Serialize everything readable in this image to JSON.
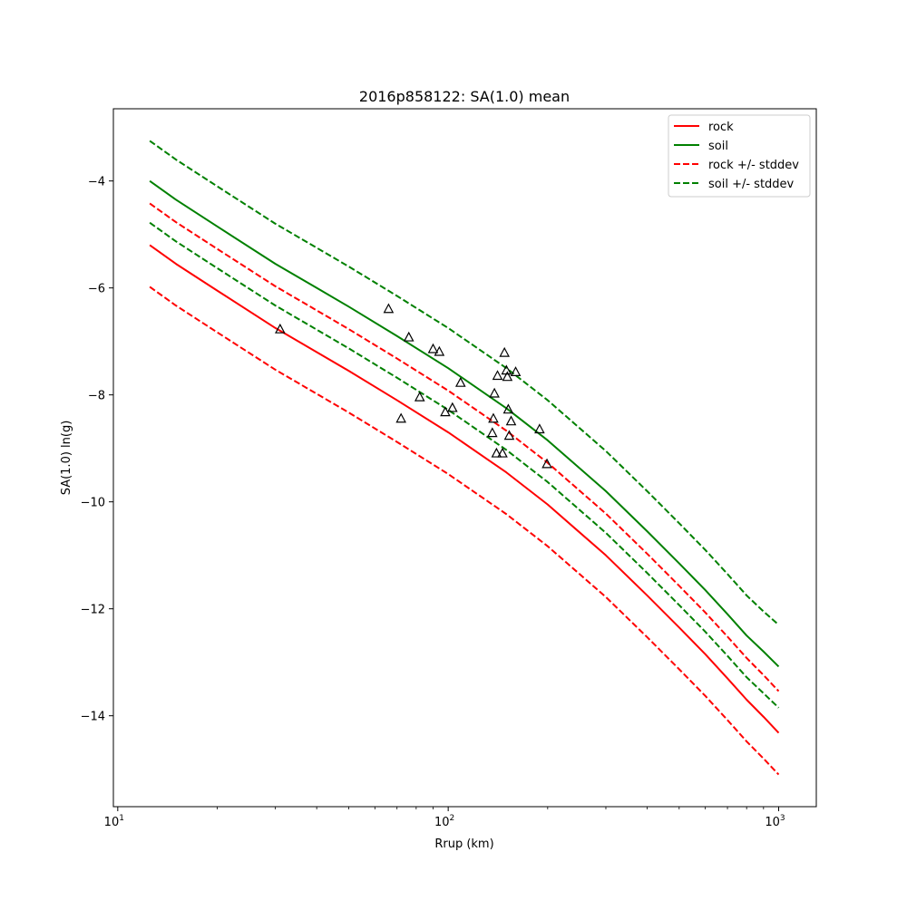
{
  "chart_data": {
    "type": "line",
    "title": "2016p858122: SA(1.0) mean",
    "xlabel": "Rrup (km)",
    "ylabel": "SA(1.0) ln(g)",
    "xscale": "log",
    "xlim": [
      9.7,
      1300
    ],
    "ylim": [
      -15.7,
      -2.65
    ],
    "xticks": [
      {
        "value": 10,
        "base": "10",
        "exp": "1"
      },
      {
        "value": 100,
        "base": "10",
        "exp": "2"
      },
      {
        "value": 1000,
        "base": "10",
        "exp": "3"
      }
    ],
    "yticks": [
      {
        "value": -14,
        "label": "−14"
      },
      {
        "value": -12,
        "label": "−12"
      },
      {
        "value": -10,
        "label": "−10"
      },
      {
        "value": -8,
        "label": "−8"
      },
      {
        "value": -6,
        "label": "−6"
      },
      {
        "value": -4,
        "label": "−4"
      }
    ],
    "grid": false,
    "legend_position": "top-right",
    "x": [
      12.5,
      15,
      20,
      30,
      40,
      50,
      70,
      100,
      150,
      200,
      300,
      400,
      500,
      600,
      700,
      800,
      900,
      1000
    ],
    "series": [
      {
        "name": "rock",
        "color": "#ff0000",
        "dash": false,
        "values": [
          -5.2,
          -5.55,
          -6.05,
          -6.75,
          -7.2,
          -7.55,
          -8.1,
          -8.7,
          -9.45,
          -10.05,
          -11.0,
          -11.75,
          -12.35,
          -12.85,
          -13.3,
          -13.7,
          -14.02,
          -14.32
        ]
      },
      {
        "name": "soil",
        "color": "#008000",
        "dash": false,
        "values": [
          -4.0,
          -4.35,
          -4.85,
          -5.55,
          -6.0,
          -6.35,
          -6.9,
          -7.5,
          -8.25,
          -8.85,
          -9.8,
          -10.55,
          -11.15,
          -11.65,
          -12.1,
          -12.5,
          -12.8,
          -13.08
        ]
      },
      {
        "name": "rock +/- stddev",
        "color": "#ff0000",
        "dash": true,
        "values": [
          -5.98,
          -6.33,
          -6.83,
          -7.53,
          -7.98,
          -8.33,
          -8.88,
          -9.48,
          -10.23,
          -10.83,
          -11.78,
          -12.53,
          -13.13,
          -13.63,
          -14.08,
          -14.48,
          -14.8,
          -15.1
        ]
      },
      {
        "name": "rock +/- stddev",
        "color": "#ff0000",
        "dash": true,
        "legend": false,
        "values": [
          -4.42,
          -4.77,
          -5.27,
          -5.97,
          -6.42,
          -6.77,
          -7.32,
          -7.92,
          -8.67,
          -9.27,
          -10.22,
          -10.97,
          -11.57,
          -12.07,
          -12.52,
          -12.92,
          -13.24,
          -13.54
        ]
      },
      {
        "name": "soil +/- stddev",
        "color": "#008000",
        "dash": true,
        "values": [
          -4.78,
          -5.13,
          -5.63,
          -6.33,
          -6.78,
          -7.13,
          -7.68,
          -8.28,
          -9.03,
          -9.63,
          -10.58,
          -11.33,
          -11.93,
          -12.43,
          -12.88,
          -13.28,
          -13.58,
          -13.85
        ]
      },
      {
        "name": "soil +/- stddev",
        "color": "#008000",
        "dash": true,
        "legend": false,
        "values": [
          -3.25,
          -3.6,
          -4.1,
          -4.8,
          -5.25,
          -5.6,
          -6.15,
          -6.75,
          -7.5,
          -8.1,
          -9.05,
          -9.8,
          -10.4,
          -10.9,
          -11.35,
          -11.75,
          -12.05,
          -12.3
        ]
      }
    ],
    "observations": {
      "marker": "triangle",
      "color": "#000000",
      "points": [
        [
          31,
          -6.78
        ],
        [
          66,
          -6.4
        ],
        [
          72,
          -8.45
        ],
        [
          76,
          -6.93
        ],
        [
          82,
          -8.05
        ],
        [
          90,
          -7.15
        ],
        [
          94,
          -7.2
        ],
        [
          98,
          -8.33
        ],
        [
          103,
          -8.25
        ],
        [
          109,
          -7.78
        ],
        [
          136,
          -8.72
        ],
        [
          137,
          -8.45
        ],
        [
          138,
          -7.98
        ],
        [
          140,
          -9.1
        ],
        [
          141,
          -7.65
        ],
        [
          146,
          -9.1
        ],
        [
          148,
          -7.22
        ],
        [
          150,
          -7.55
        ],
        [
          151,
          -7.67
        ],
        [
          152,
          -8.28
        ],
        [
          153,
          -8.77
        ],
        [
          155,
          -8.5
        ],
        [
          160,
          -7.58
        ],
        [
          189,
          -8.65
        ],
        [
          199,
          -9.3
        ]
      ]
    }
  }
}
